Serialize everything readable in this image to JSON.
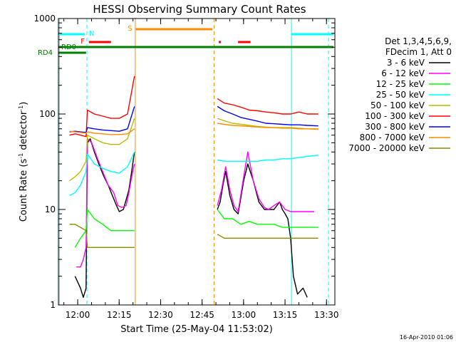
{
  "chart_data": {
    "type": "line",
    "title": "HESSI Observing Summary Count Rates",
    "xlabel": "Start Time (25-May-04 11:53:02)",
    "ylabel_main": "Count Rate (s",
    "ylabel_sup1": "-1",
    "ylabel_mid": " detector",
    "ylabel_sup2": "-1",
    "ylabel_end": ")",
    "x_unit": "minutes since 11:53:02",
    "xlim": [
      0,
      100
    ],
    "ylim": [
      1,
      1000
    ],
    "y_scale": "log",
    "x_ticks": [
      {
        "x": 6.97,
        "label": "12:00"
      },
      {
        "x": 21.97,
        "label": "12:15"
      },
      {
        "x": 36.97,
        "label": "12:30"
      },
      {
        "x": 51.97,
        "label": "12:45"
      },
      {
        "x": 66.97,
        "label": "13:00"
      },
      {
        "x": 81.97,
        "label": "13:15"
      },
      {
        "x": 96.97,
        "label": "13:30"
      }
    ],
    "y_ticks": [
      {
        "y": 1,
        "label": "1"
      },
      {
        "y": 10,
        "label": "10"
      },
      {
        "y": 100,
        "label": "100"
      },
      {
        "y": 1000,
        "label": "1000"
      }
    ],
    "legend_header": [
      "Det 1,3,4,5,6,9,",
      "FDecim 1, Att 0"
    ],
    "legend_position": "right",
    "series": [
      {
        "name": "3 - 6 keV",
        "color": "#000000",
        "x": [
          0,
          4,
          6,
          8,
          9,
          10,
          10.5,
          11.5,
          13,
          15,
          16.5,
          18,
          19.5,
          21,
          22,
          23.5,
          25.5,
          26.5,
          27.5,
          56.5,
          57.5,
          58.5,
          59.5,
          60.5,
          62,
          63.5,
          65,
          67,
          68.5,
          70.5,
          72.5,
          74.5,
          76,
          78,
          80,
          81,
          82,
          83,
          84,
          85,
          86.5,
          88.5,
          90,
          94,
          97.5
        ],
        "y": [
          null,
          null,
          2,
          1.5,
          1.2,
          1.5,
          50,
          55,
          40,
          28,
          22,
          18,
          14,
          11,
          9.5,
          10,
          16,
          25,
          40,
          null,
          10,
          12,
          18,
          25,
          14,
          10,
          9,
          20,
          30,
          20,
          12,
          10,
          10,
          10,
          12,
          10,
          9,
          8,
          5,
          2,
          1.3,
          1.5,
          1.2,
          null,
          null
        ]
      },
      {
        "name": "6 - 12 keV",
        "color": "#ff00ff",
        "x": [
          0,
          4,
          6.5,
          8,
          9,
          10,
          10.5,
          12,
          14,
          16,
          18,
          20,
          21.5,
          23,
          24.5,
          25.5,
          26.5,
          27.5,
          56.5,
          57.5,
          59,
          60.5,
          62,
          63.5,
          65,
          67,
          68.5,
          70.5,
          72.5,
          74.5,
          76,
          78,
          80,
          82,
          84,
          86.5,
          88.5,
          90,
          92.5,
          94,
          97.5
        ],
        "y": [
          null,
          null,
          2.5,
          2.5,
          3,
          4,
          55,
          50,
          35,
          25,
          18,
          15,
          11,
          10.5,
          11,
          15,
          22,
          30,
          null,
          11,
          16,
          28,
          16,
          11,
          9.5,
          22,
          40,
          20,
          13,
          10.5,
          10,
          11,
          12,
          10,
          9.5,
          9.5,
          9.5,
          9.5,
          9.5,
          null,
          null
        ]
      },
      {
        "name": "12 - 25 keV",
        "color": "#00ff00",
        "x": [
          0,
          4,
          6,
          8,
          10,
          10.5,
          13,
          16,
          19,
          22,
          25,
          27.5,
          56.5,
          57.5,
          60,
          63,
          66,
          69,
          72,
          75,
          78,
          81,
          84,
          87,
          90,
          94,
          97.5
        ],
        "y": [
          null,
          null,
          4,
          5,
          6,
          10,
          8,
          7,
          6,
          6,
          6,
          6,
          null,
          10,
          8,
          8,
          7,
          7.5,
          7,
          7,
          7,
          6.5,
          6.5,
          6.5,
          6.5,
          6.5,
          null
        ]
      },
      {
        "name": "25 - 50 keV",
        "color": "#00ffff",
        "x": [
          0,
          4,
          6,
          8,
          10,
          10.5,
          13,
          16,
          19,
          22,
          25,
          27.5,
          56.5,
          57.5,
          60,
          63,
          66,
          69,
          72,
          75,
          78,
          81,
          84,
          87,
          90,
          94,
          97.5
        ],
        "y": [
          null,
          14,
          15,
          18,
          25,
          38,
          30,
          27,
          25,
          24,
          28,
          40,
          null,
          33,
          32,
          32,
          32,
          32,
          32,
          33,
          33,
          34,
          34,
          35,
          36,
          37,
          null
        ]
      },
      {
        "name": "50 - 100 keV",
        "color": "#bbbb00",
        "x": [
          0,
          4,
          6,
          8,
          10,
          10.5,
          13,
          16,
          19,
          22,
          25,
          27.5,
          56.5,
          57.5,
          60,
          63,
          66,
          69,
          72,
          75,
          78,
          81,
          84,
          87,
          90,
          94,
          97.5
        ],
        "y": [
          null,
          20,
          22,
          25,
          32,
          60,
          55,
          50,
          48,
          48,
          55,
          90,
          null,
          90,
          85,
          80,
          78,
          76,
          74,
          73,
          72,
          72,
          72,
          71,
          70,
          70,
          null
        ]
      },
      {
        "name": "100 - 300 keV",
        "color": "#ff0000",
        "x": [
          0,
          4,
          6,
          8,
          10,
          10.5,
          13,
          16,
          19,
          22,
          25,
          27.5,
          56.5,
          57.5,
          60,
          63,
          66,
          69,
          72,
          75,
          78,
          81,
          84,
          87,
          90,
          94,
          97.5
        ],
        "y": [
          null,
          60,
          62,
          60,
          58,
          110,
          100,
          95,
          90,
          90,
          100,
          250,
          null,
          145,
          130,
          125,
          118,
          110,
          108,
          105,
          103,
          100,
          100,
          105,
          100,
          100,
          null
        ]
      },
      {
        "name": "300 - 800 keV",
        "color": "#0000ff",
        "x": [
          0,
          4,
          6,
          8,
          10,
          10.5,
          13,
          16,
          19,
          22,
          25,
          27.5,
          56.5,
          57.5,
          60,
          63,
          66,
          69,
          72,
          75,
          78,
          81,
          84,
          87,
          90,
          94,
          97.5
        ],
        "y": [
          null,
          65,
          66,
          65,
          64,
          72,
          70,
          68,
          67,
          66,
          70,
          120,
          null,
          120,
          108,
          100,
          92,
          88,
          84,
          80,
          79,
          78,
          77,
          77,
          76,
          75,
          null
        ]
      },
      {
        "name": "800 - 7000 keV",
        "color": "#ff8c00",
        "x": [
          0,
          4,
          6,
          8,
          10,
          10.5,
          13,
          16,
          19,
          22,
          25,
          27.5,
          56.5,
          57.5,
          60,
          63,
          66,
          69,
          72,
          75,
          78,
          81,
          84,
          87,
          90,
          94,
          97.5
        ],
        "y": [
          null,
          66,
          65,
          64,
          63,
          65,
          63,
          62,
          61,
          61,
          62,
          70,
          null,
          80,
          78,
          76,
          75,
          74,
          73,
          72,
          72,
          71,
          71,
          70,
          70,
          69,
          null
        ]
      },
      {
        "name": "7000 - 20000 keV",
        "color": "#8b8b00",
        "x": [
          0,
          4,
          6,
          8,
          10,
          10.5,
          13,
          16,
          19,
          22,
          25,
          27.5,
          56.5,
          57.5,
          60,
          63,
          66,
          69,
          72,
          75,
          78,
          81,
          84,
          87,
          90,
          94,
          97.5
        ],
        "y": [
          null,
          7,
          7,
          6.5,
          6,
          4,
          4,
          4,
          4,
          4,
          4,
          4,
          null,
          5.5,
          5,
          5,
          5,
          5,
          5,
          5,
          5,
          5,
          5,
          5,
          5,
          5,
          null
        ]
      }
    ],
    "vertical_markers": [
      {
        "x": 0.35,
        "color": "#00ffff",
        "dash": "solid"
      },
      {
        "x": 10.3,
        "color": "#00ffff",
        "dash": "dashed"
      },
      {
        "x": 27.8,
        "color": "#ff8c00",
        "dash": "solid"
      },
      {
        "x": 56.3,
        "color": "#ff8c00",
        "dash": "dashed"
      },
      {
        "x": 84.3,
        "color": "#00ffff",
        "dash": "solid"
      },
      {
        "x": 97.7,
        "color": "#00ffff",
        "dash": "dashed"
      }
    ],
    "state_bars": [
      {
        "flag": "N",
        "color": "#00ffff",
        "segments": [
          [
            0,
            9.5
          ],
          [
            84.3,
            99.5
          ]
        ]
      },
      {
        "flag": "S",
        "color": "#ff8c00",
        "segments": [
          [
            28,
            55.7
          ]
        ]
      },
      {
        "flag": "F",
        "color": "#ff0000",
        "segments": [
          [
            11,
            19
          ],
          [
            58,
            58.8
          ],
          [
            65,
            69.5
          ]
        ]
      },
      {
        "flag": "RD0",
        "color": "#008000",
        "segments": [
          [
            0,
            99.5
          ]
        ]
      },
      {
        "flag": "RD4",
        "color": "#008000",
        "segments": [
          [
            0,
            10
          ]
        ]
      }
    ],
    "flag_labels": [
      "N",
      "S",
      "F",
      "RD0",
      "RD4"
    ],
    "footer_date": "16-Apr-2010 01:06"
  }
}
